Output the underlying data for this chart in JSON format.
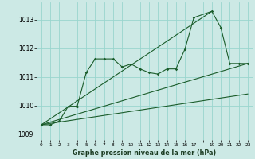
{
  "bg_color": "#cce9e5",
  "grid_color": "#99d5ce",
  "line_color": "#1a5c2a",
  "title": "Graphe pression niveau de la mer (hPa)",
  "xlim": [
    -0.5,
    23.5
  ],
  "ylim": [
    1008.8,
    1013.6
  ],
  "yticks": [
    1009,
    1010,
    1011,
    1012,
    1013
  ],
  "xticks": [
    0,
    1,
    2,
    3,
    4,
    5,
    6,
    7,
    8,
    9,
    10,
    11,
    12,
    13,
    14,
    15,
    16,
    17,
    18,
    19,
    20,
    21,
    22,
    23
  ],
  "main_x": [
    0,
    1,
    2,
    3,
    4,
    5,
    6,
    7,
    8,
    9,
    10,
    11,
    12,
    13,
    14,
    15,
    16,
    17,
    19,
    20,
    21,
    22,
    23
  ],
  "main_y": [
    1009.32,
    1009.32,
    1009.45,
    1009.97,
    1009.97,
    1011.15,
    1011.63,
    1011.63,
    1011.63,
    1011.35,
    1011.45,
    1011.28,
    1011.15,
    1011.1,
    1011.28,
    1011.28,
    1011.97,
    1013.08,
    1013.3,
    1012.73,
    1011.47,
    1011.47,
    1011.47
  ],
  "line1_x": [
    0,
    19
  ],
  "line1_y": [
    1009.32,
    1013.3
  ],
  "line2_x": [
    0,
    23
  ],
  "line2_y": [
    1009.32,
    1011.47
  ],
  "line3_x": [
    0,
    23
  ],
  "line3_y": [
    1009.32,
    1010.4
  ]
}
